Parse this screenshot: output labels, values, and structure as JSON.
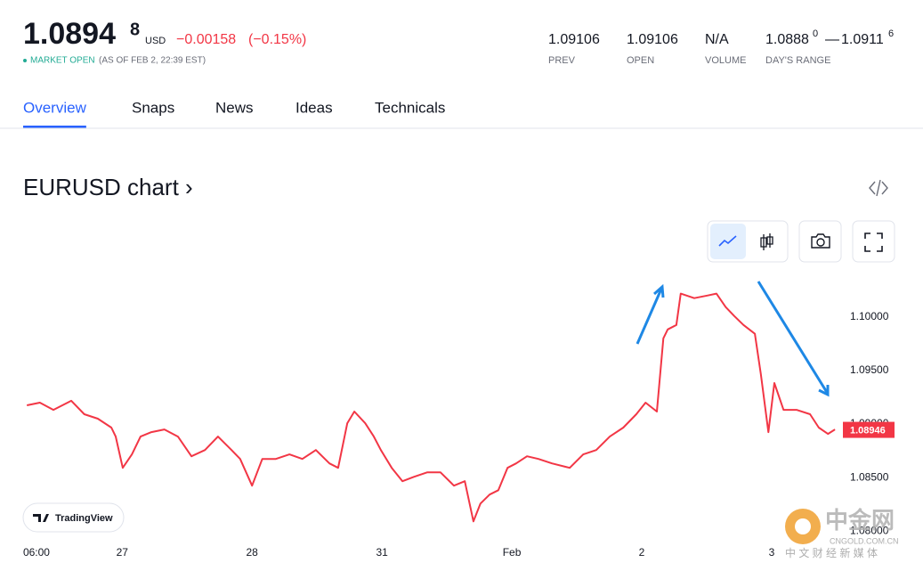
{
  "header": {
    "price": "1.0894",
    "price_sup": "8",
    "currency": "USD",
    "change": "−0.00158",
    "change_pct": "(−0.15%)",
    "status": "MARKET OPEN",
    "as_of": "(AS OF FEB 2, 22:39 EST)",
    "stats": [
      {
        "value": "1.09106",
        "label": "PREV"
      },
      {
        "value": "1.09106",
        "label": "OPEN"
      },
      {
        "value": "N/A",
        "label": "VOLUME"
      }
    ],
    "range": {
      "low": "1.0888",
      "low_sup": "0",
      "dash": "—",
      "high": "1.0911",
      "high_sup": "6",
      "label": "DAY'S RANGE"
    }
  },
  "tabs": [
    "Overview",
    "Snaps",
    "News",
    "Ideas",
    "Technicals"
  ],
  "section_title": "EURUSD chart ›",
  "badge": "TradingView",
  "watermark": {
    "name": "中金网",
    "site": "CNGOLD.COM.CN",
    "tagline": "中 文 财 经 新 媒 体"
  },
  "chart_data": {
    "type": "line",
    "color": "#f23645",
    "x": [
      -1.6,
      0.8,
      3.3,
      6.6,
      9.0,
      11.5,
      14.0,
      14.8,
      16.1,
      17.8,
      19.4,
      21.4,
      23.8,
      26.3,
      28.8,
      31.3,
      33.7,
      36.2,
      37.8,
      40.0,
      41.9,
      44.4,
      46.9,
      49.3,
      51.8,
      54.3,
      55.9,
      57.6,
      58.9,
      60.9,
      62.5,
      63.8,
      65.8,
      67.8,
      69.9,
      72.4,
      74.8,
      77.3,
      79.3,
      80.9,
      82.2,
      83.9,
      85.5,
      87.2,
      88.8,
      90.8,
      92.9,
      95.4,
      98.7,
      101.2,
      103.6,
      106.1,
      108.6,
      111.0,
      112.7,
      114.8,
      116.0,
      116.8,
      118.4,
      119.2,
      121.7,
      124.2,
      125.8,
      127.5,
      129.1,
      130.8,
      132.9,
      134.0,
      135.4,
      136.5,
      138.2,
      140.6,
      143.1,
      144.7,
      146.4,
      147.7
    ],
    "values": [
      1.09175,
      1.092,
      1.09133,
      1.09217,
      1.09092,
      1.0905,
      1.08967,
      1.08883,
      1.08592,
      1.08717,
      1.08883,
      1.08925,
      1.0895,
      1.08883,
      1.087,
      1.08758,
      1.08883,
      1.08758,
      1.08675,
      1.08425,
      1.08675,
      1.08675,
      1.08717,
      1.08675,
      1.08758,
      1.08633,
      1.08592,
      1.09008,
      1.09117,
      1.09008,
      1.08883,
      1.08758,
      1.08592,
      1.08467,
      1.08508,
      1.0855,
      1.0855,
      1.08425,
      1.08467,
      1.08092,
      1.08258,
      1.08342,
      1.08383,
      1.08592,
      1.08633,
      1.087,
      1.08675,
      1.08633,
      1.08592,
      1.08717,
      1.08758,
      1.08883,
      1.08967,
      1.09092,
      1.092,
      1.09117,
      1.098,
      1.09883,
      1.09925,
      1.10217,
      1.10175,
      1.102,
      1.10217,
      1.10092,
      1.10008,
      1.09925,
      1.09842,
      1.09467,
      1.08925,
      1.09383,
      1.09133,
      1.09133,
      1.09092,
      1.08967,
      1.08908,
      1.0895
    ],
    "last_value": 1.08946,
    "xlim": [
      -2,
      149
    ],
    "xticks": [
      {
        "value": 0,
        "label": "06:00"
      },
      {
        "value": 16,
        "label": "27"
      },
      {
        "value": 40,
        "label": "28"
      },
      {
        "value": 64,
        "label": "31"
      },
      {
        "value": 88,
        "label": "Feb"
      },
      {
        "value": 112,
        "label": "2"
      },
      {
        "value": 136,
        "label": "3"
      }
    ],
    "ylim": [
      1.0797,
      1.1038
    ],
    "yticks": [
      {
        "value": 1.08,
        "label": "1.08000"
      },
      {
        "value": 1.085,
        "label": "1.08500"
      },
      {
        "value": 1.09,
        "label": "1.09000"
      },
      {
        "value": 1.095,
        "label": "1.09500"
      },
      {
        "value": 1.1,
        "label": "1.10000"
      }
    ]
  }
}
